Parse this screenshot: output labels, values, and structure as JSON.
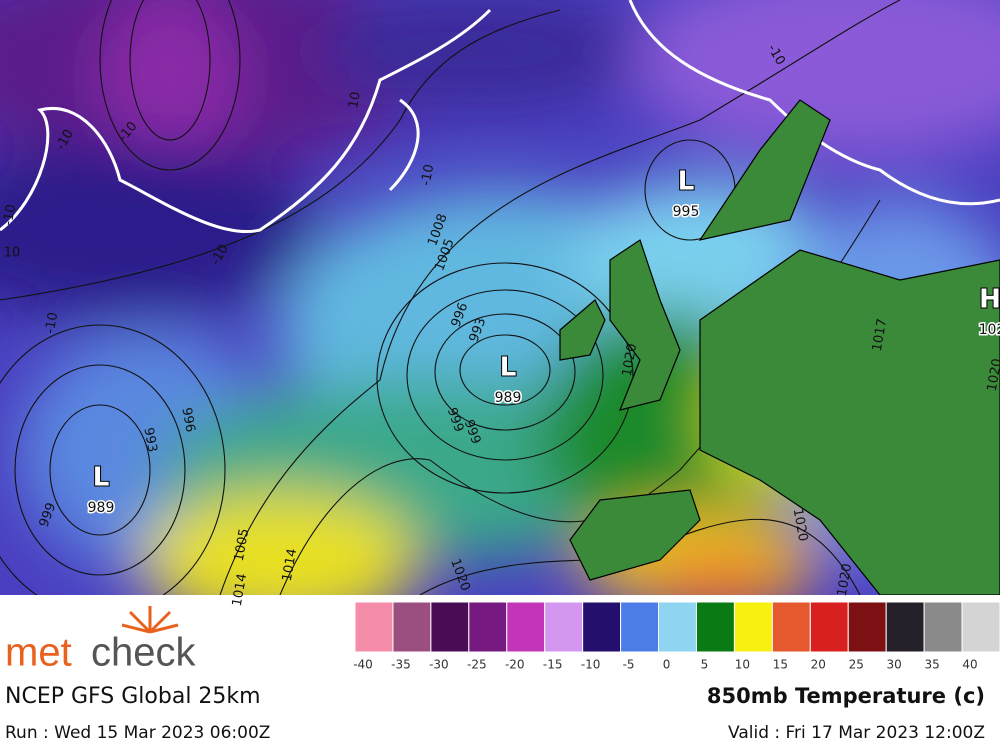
{
  "map": {
    "pressure_centres": [
      {
        "symbol": "L",
        "value": "995"
      },
      {
        "symbol": "L",
        "value": "989"
      },
      {
        "symbol": "L",
        "value": "989"
      },
      {
        "symbol": "H",
        "value": "102"
      }
    ],
    "isobar_labels": [
      "1008",
      "1005",
      "996",
      "993",
      "999",
      "999",
      "993",
      "996",
      "999",
      "1005",
      "1014",
      "1020",
      "1020",
      "1020",
      "1017",
      "1014",
      "1020",
      "1020"
    ],
    "temperature_labels": [
      "-10",
      "-10",
      "-10",
      "-10",
      "-10",
      "-10",
      "-10",
      "10",
      "10"
    ]
  },
  "legend": {
    "values": [
      -40,
      -35,
      -30,
      -25,
      -20,
      -15,
      -10,
      -5,
      0,
      5,
      10,
      15,
      20,
      25,
      30,
      35,
      40
    ],
    "colors": [
      "#f48caa",
      "#9b4f80",
      "#4a0c55",
      "#761a82",
      "#c234b8",
      "#d397f0",
      "#24106c",
      "#4d7ee8",
      "#8fd5f2",
      "#0a7a14",
      "#f7f011",
      "#e6582d",
      "#d92020",
      "#7c1012",
      "#26202a",
      "#8a8a8a",
      "#d4d4d4"
    ]
  },
  "footer": {
    "logo_a": "met",
    "logo_b": "check",
    "model": "NCEP GFS Global 25km",
    "run": "Run : Wed 15 Mar 2023 06:00Z",
    "product": "850mb Temperature (c)",
    "valid": "Valid : Fri 17 Mar 2023 12:00Z"
  }
}
